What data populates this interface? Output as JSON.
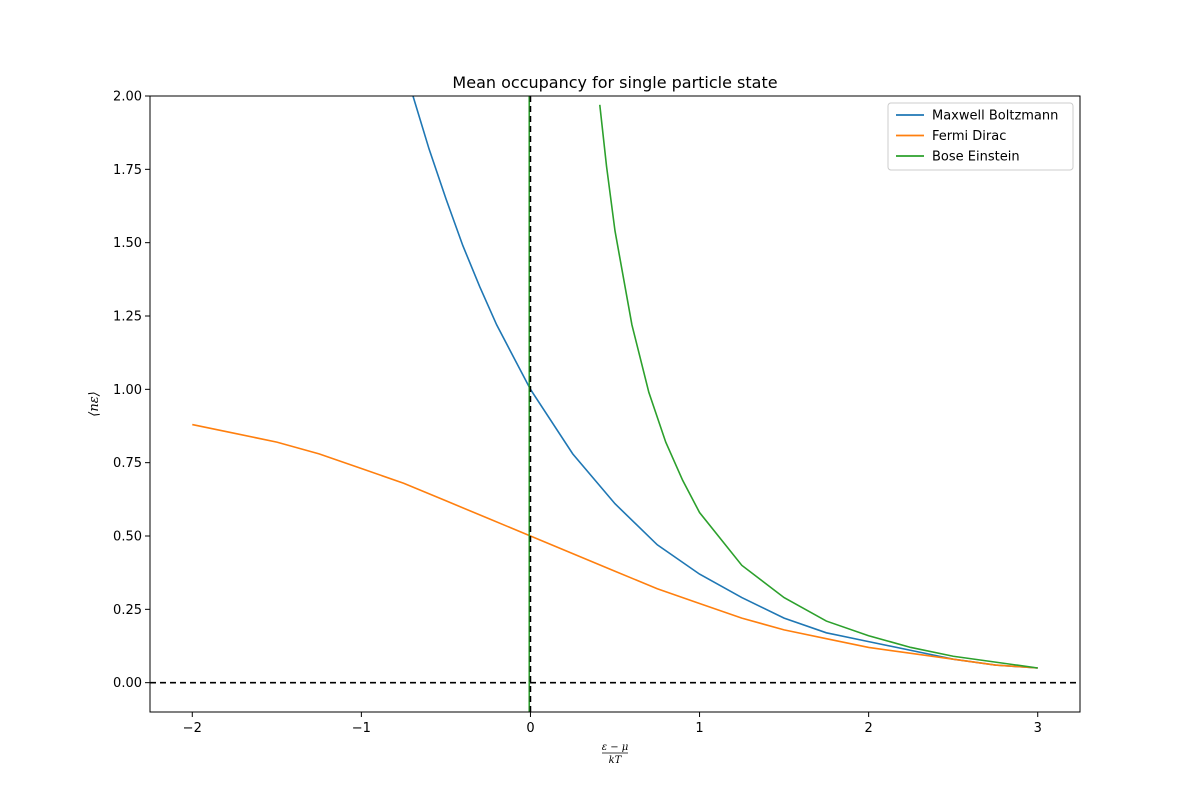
{
  "chart_data": {
    "type": "line",
    "title": "Mean occupancy for single particle state",
    "xlabel": {
      "numerator": "ε − μ",
      "denominator": "kT"
    },
    "ylabel": "⟨nε⟩",
    "xlim": [
      -2.25,
      3.25
    ],
    "ylim": [
      -0.1,
      2.0
    ],
    "xticks": [
      -2,
      -1,
      0,
      1,
      2,
      3
    ],
    "xtick_labels": [
      "−2",
      "−1",
      "0",
      "1",
      "2",
      "3"
    ],
    "yticks": [
      0.0,
      0.25,
      0.5,
      0.75,
      1.0,
      1.25,
      1.5,
      1.75,
      2.0
    ],
    "ytick_labels": [
      "0.00",
      "0.25",
      "0.50",
      "0.75",
      "1.00",
      "1.25",
      "1.50",
      "1.75",
      "2.00"
    ],
    "grid": false,
    "legend_position": "top-right",
    "reference_lines": [
      {
        "orientation": "horizontal",
        "value": 0,
        "style": "dashed",
        "color": "#000000"
      },
      {
        "orientation": "vertical",
        "value": 0,
        "style": "dashed",
        "color": "#000000"
      }
    ],
    "series": [
      {
        "name": "Maxwell Boltzmann",
        "color": "#1f77b4",
        "x": [
          -0.7,
          -0.6,
          -0.5,
          -0.4,
          -0.3,
          -0.2,
          -0.1,
          0.0,
          0.25,
          0.5,
          0.75,
          1.0,
          1.25,
          1.5,
          1.75,
          2.0,
          2.25,
          2.5,
          2.75,
          3.0
        ],
        "y": [
          2.01,
          1.82,
          1.65,
          1.49,
          1.35,
          1.22,
          1.11,
          1.0,
          0.78,
          0.61,
          0.47,
          0.37,
          0.29,
          0.22,
          0.17,
          0.14,
          0.11,
          0.08,
          0.06,
          0.05
        ]
      },
      {
        "name": "Fermi Dirac",
        "color": "#ff7f0e",
        "x": [
          -2.0,
          -1.75,
          -1.5,
          -1.25,
          -1.0,
          -0.75,
          -0.5,
          -0.25,
          0.0,
          0.25,
          0.5,
          0.75,
          1.0,
          1.25,
          1.5,
          1.75,
          2.0,
          2.25,
          2.5,
          2.75,
          3.0
        ],
        "y": [
          0.88,
          0.85,
          0.82,
          0.78,
          0.73,
          0.68,
          0.62,
          0.56,
          0.5,
          0.44,
          0.38,
          0.32,
          0.27,
          0.22,
          0.18,
          0.15,
          0.12,
          0.1,
          0.08,
          0.06,
          0.05
        ]
      },
      {
        "name": "Bose Einstein",
        "color": "#2ca02c",
        "x": [
          0.41,
          0.45,
          0.5,
          0.6,
          0.7,
          0.8,
          0.9,
          1.0,
          1.25,
          1.5,
          1.75,
          2.0,
          2.25,
          2.5,
          2.75,
          3.0
        ],
        "y": [
          1.97,
          1.76,
          1.54,
          1.22,
          0.99,
          0.82,
          0.69,
          0.58,
          0.4,
          0.29,
          0.21,
          0.16,
          0.12,
          0.09,
          0.07,
          0.05
        ]
      }
    ]
  }
}
